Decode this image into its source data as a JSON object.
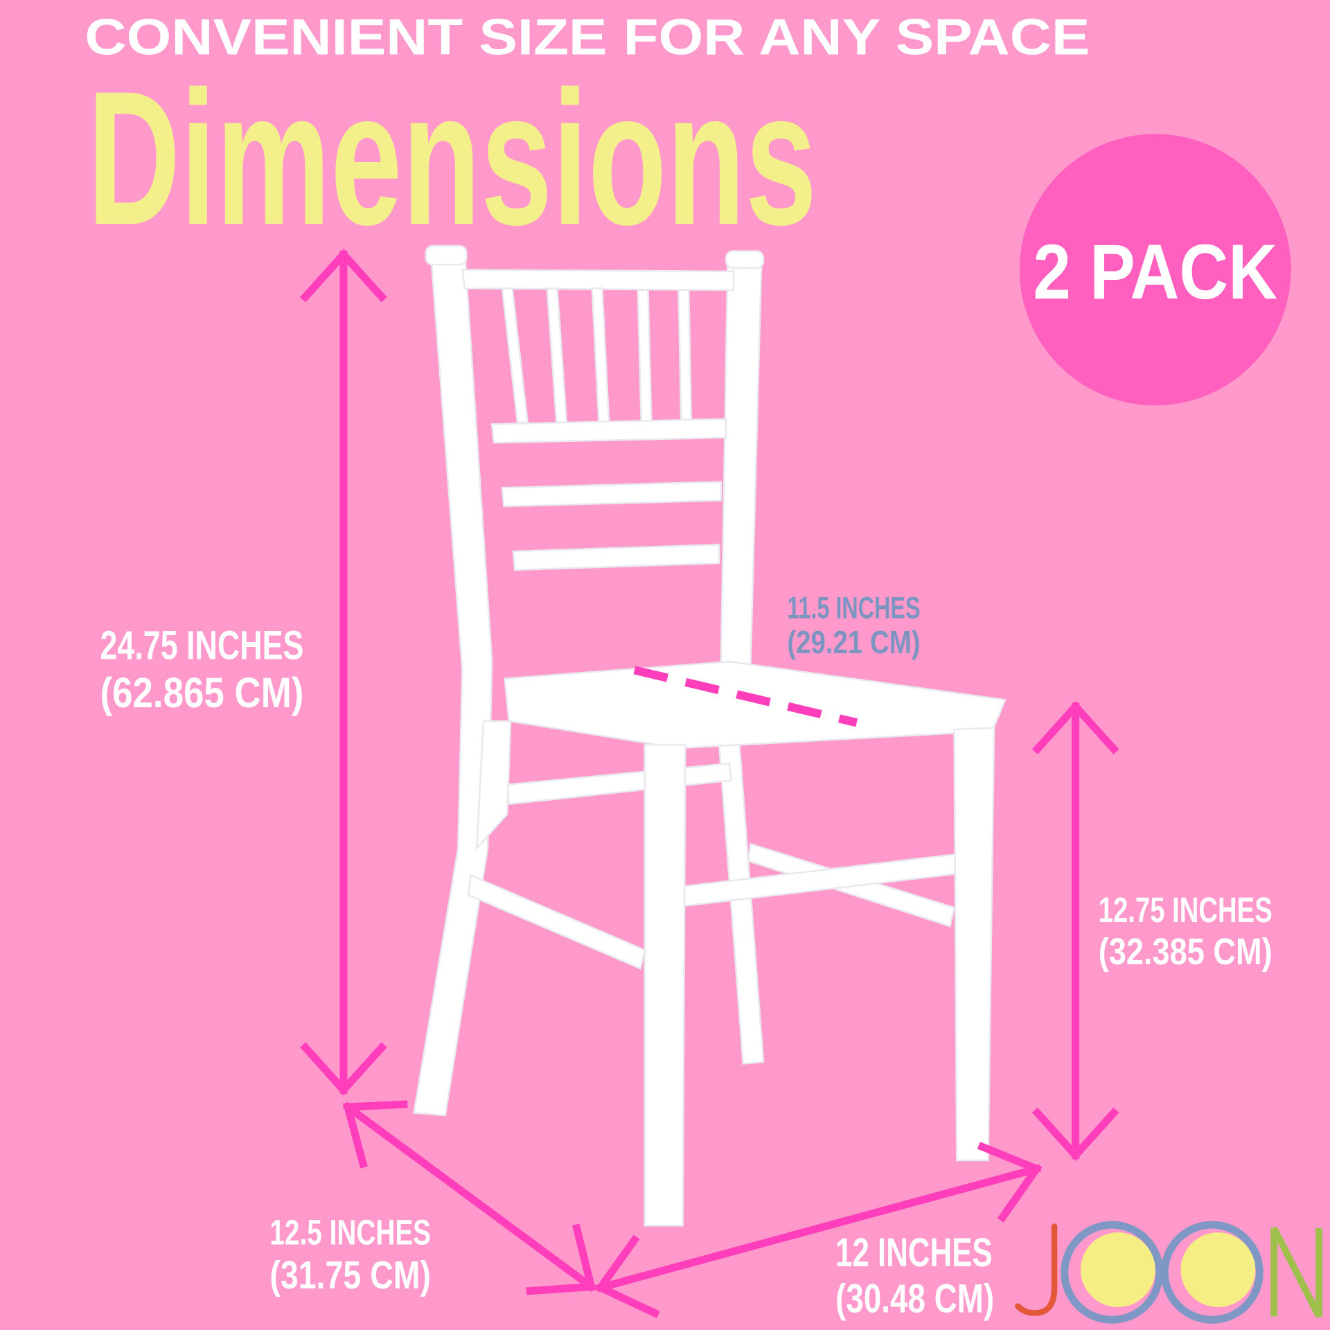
{
  "header": {
    "tagline": "CONVENIENT SIZE FOR ANY SPACE",
    "title": "Dimensions"
  },
  "badge": {
    "label": "2 PACK"
  },
  "dimensions": {
    "height": {
      "inches": "24.75 INCHES",
      "cm": "(62.865 CM)"
    },
    "seat_height": {
      "inches": "12.75 INCHES",
      "cm": "(32.385 CM)"
    },
    "seat_depth": {
      "inches": "11.5 INCHES",
      "cm": "(29.21 CM)"
    },
    "depth": {
      "inches": "12.5 INCHES",
      "cm": "(31.75 CM)"
    },
    "width": {
      "inches": "12 INCHES",
      "cm": "(30.48 CM)"
    }
  },
  "logo": {
    "text": "JOON"
  },
  "colors": {
    "background": "#ff99cc",
    "arrow": "#ff3ebb",
    "title": "#f3ef8a",
    "badge": "#ff5fbe",
    "seat_label": "#7b94c0",
    "logo_j": "#e4583a",
    "logo_o": "#7f97c4",
    "logo_o_fill": "#f5ee85",
    "logo_n": "#9fc04a"
  }
}
